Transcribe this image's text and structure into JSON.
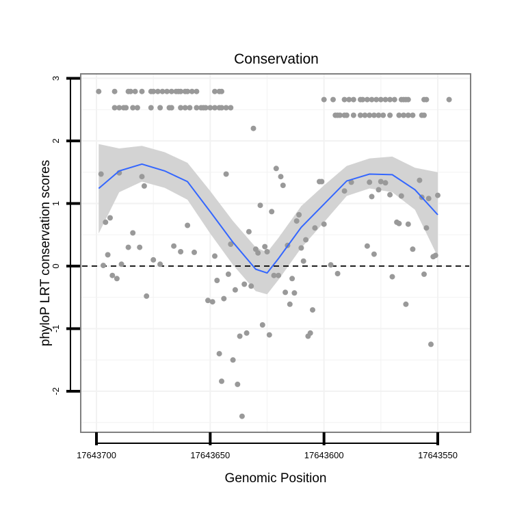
{
  "chart_data": {
    "type": "scatter",
    "title": "Conservation",
    "xlabel": "Genomic Position",
    "ylabel": "phyloP LRT conservation scores",
    "x_reversed": true,
    "xlim": [
      17643700,
      17643545
    ],
    "ylim": [
      -2.6,
      3.0
    ],
    "x_ticks": [
      17643700,
      17643650,
      17643600,
      17643550
    ],
    "x_tick_labels": [
      "17643700",
      "17643650",
      "17643600",
      "17643550"
    ],
    "y_ticks": [
      -2,
      -1,
      0,
      1,
      2,
      3
    ],
    "y_tick_labels": [
      "-2",
      "-1",
      "0",
      "1",
      "2",
      "3"
    ],
    "grid": true,
    "reference_line": {
      "y": 0,
      "style": "dashed",
      "color": "#000000"
    },
    "colors": {
      "points": "#999999",
      "smooth": "#3366ff",
      "ribbon": "#d3d3d3",
      "panel_border": "#7f7f7f",
      "grid": "#f2f2f2"
    },
    "series": [
      {
        "kind": "points",
        "points": [
          [
            17643699,
            2.79
          ],
          [
            17643698,
            1.47
          ],
          [
            17643697,
            0.01
          ],
          [
            17643696,
            0.7
          ],
          [
            17643695,
            0.18
          ],
          [
            17643694,
            0.77
          ],
          [
            17643693,
            -0.15
          ],
          [
            17643691,
            -0.2
          ],
          [
            17643690,
            1.49
          ],
          [
            17643689,
            0.03
          ],
          [
            17643686,
            0.3
          ],
          [
            17643684,
            0.53
          ],
          [
            17643681,
            0.3
          ],
          [
            17643680,
            1.43
          ],
          [
            17643679,
            1.28
          ],
          [
            17643678,
            -0.48
          ],
          [
            17643675,
            0.1
          ],
          [
            17643672,
            0.03
          ],
          [
            17643666,
            0.32
          ],
          [
            17643663,
            0.23
          ],
          [
            17643660,
            0.65
          ],
          [
            17643657,
            0.22
          ],
          [
            17643651,
            -0.55
          ],
          [
            17643649,
            -0.57
          ],
          [
            17643648,
            0.16
          ],
          [
            17643647,
            -0.23
          ],
          [
            17643646,
            -1.4
          ],
          [
            17643645,
            -1.84
          ],
          [
            17643644,
            -0.52
          ],
          [
            17643643,
            1.47
          ],
          [
            17643642,
            -0.13
          ],
          [
            17643641,
            0.35
          ],
          [
            17643640,
            -1.5
          ],
          [
            17643639,
            -0.38
          ],
          [
            17643638,
            -1.89
          ],
          [
            17643637,
            -1.12
          ],
          [
            17643636,
            -2.4
          ],
          [
            17643635,
            -0.29
          ],
          [
            17643634,
            -1.07
          ],
          [
            17643633,
            0.55
          ],
          [
            17643632,
            -0.32
          ],
          [
            17643631,
            2.2
          ],
          [
            17643630,
            0.27
          ],
          [
            17643629,
            0.21
          ],
          [
            17643628,
            0.97
          ],
          [
            17643627,
            -0.94
          ],
          [
            17643626,
            0.31
          ],
          [
            17643625,
            0.23
          ],
          [
            17643624,
            -1.1
          ],
          [
            17643623,
            0.87
          ],
          [
            17643622,
            -0.15
          ],
          [
            17643621,
            1.56
          ],
          [
            17643620,
            -0.15
          ],
          [
            17643619,
            1.43
          ],
          [
            17643618,
            1.29
          ],
          [
            17643617,
            -0.42
          ],
          [
            17643616,
            0.33
          ],
          [
            17643615,
            -0.61
          ],
          [
            17643614,
            -0.2
          ],
          [
            17643613,
            -0.43
          ],
          [
            17643612,
            0.72
          ],
          [
            17643611,
            0.82
          ],
          [
            17643610,
            0.29
          ],
          [
            17643609,
            0.08
          ],
          [
            17643608,
            0.42
          ],
          [
            17643607,
            -1.12
          ],
          [
            17643606,
            -1.07
          ],
          [
            17643605,
            -0.7
          ],
          [
            17643604,
            0.61
          ],
          [
            17643602,
            1.35
          ],
          [
            17643601,
            1.35
          ],
          [
            17643600,
            0.67
          ],
          [
            17643597,
            0.02
          ],
          [
            17643594,
            -0.12
          ],
          [
            17643591,
            1.2
          ],
          [
            17643588,
            1.34
          ],
          [
            17643581,
            0.32
          ],
          [
            17643580,
            1.34
          ],
          [
            17643579,
            1.11
          ],
          [
            17643578,
            0.19
          ],
          [
            17643576,
            1.22
          ],
          [
            17643575,
            1.35
          ],
          [
            17643573,
            1.33
          ],
          [
            17643571,
            1.14
          ],
          [
            17643570,
            -0.17
          ],
          [
            17643568,
            0.7
          ],
          [
            17643567,
            0.68
          ],
          [
            17643566,
            1.12
          ],
          [
            17643564,
            -0.61
          ],
          [
            17643563,
            0.67
          ],
          [
            17643561,
            0.27
          ],
          [
            17643558,
            1.37
          ],
          [
            17643557,
            1.1
          ],
          [
            17643556,
            -0.13
          ],
          [
            17643555,
            0.61
          ],
          [
            17643554,
            1.08
          ],
          [
            17643553,
            -1.25
          ],
          [
            17643552,
            0.15
          ],
          [
            17643551,
            0.17
          ],
          [
            17643550,
            1.13
          ]
        ]
      },
      {
        "kind": "points",
        "points": [
          [
            17643692,
            2.79
          ],
          [
            17643686,
            2.79
          ],
          [
            17643685,
            2.79
          ],
          [
            17643683,
            2.79
          ],
          [
            17643680,
            2.79
          ],
          [
            17643676,
            2.79
          ],
          [
            17643675,
            2.79
          ],
          [
            17643673,
            2.79
          ],
          [
            17643671,
            2.79
          ],
          [
            17643669,
            2.79
          ],
          [
            17643667,
            2.79
          ],
          [
            17643665,
            2.79
          ],
          [
            17643664,
            2.79
          ],
          [
            17643663,
            2.79
          ],
          [
            17643661,
            2.79
          ],
          [
            17643660,
            2.79
          ],
          [
            17643658,
            2.79
          ],
          [
            17643656,
            2.79
          ],
          [
            17643648,
            2.79
          ],
          [
            17643646,
            2.79
          ],
          [
            17643645,
            2.79
          ],
          [
            17643692,
            2.53
          ],
          [
            17643690,
            2.53
          ],
          [
            17643688,
            2.53
          ],
          [
            17643687,
            2.53
          ],
          [
            17643684,
            2.53
          ],
          [
            17643682,
            2.53
          ],
          [
            17643676,
            2.53
          ],
          [
            17643672,
            2.53
          ],
          [
            17643668,
            2.53
          ],
          [
            17643667,
            2.53
          ],
          [
            17643663,
            2.53
          ],
          [
            17643661,
            2.53
          ],
          [
            17643659,
            2.53
          ],
          [
            17643656,
            2.53
          ],
          [
            17643654,
            2.53
          ],
          [
            17643653,
            2.53
          ],
          [
            17643652,
            2.53
          ],
          [
            17643650,
            2.53
          ],
          [
            17643648,
            2.53
          ],
          [
            17643646,
            2.53
          ],
          [
            17643645,
            2.53
          ],
          [
            17643643,
            2.53
          ],
          [
            17643641,
            2.53
          ],
          [
            17643600,
            2.66
          ],
          [
            17643596,
            2.66
          ],
          [
            17643591,
            2.66
          ],
          [
            17643589,
            2.66
          ],
          [
            17643587,
            2.66
          ],
          [
            17643584,
            2.66
          ],
          [
            17643583,
            2.66
          ],
          [
            17643581,
            2.66
          ],
          [
            17643579,
            2.66
          ],
          [
            17643577,
            2.66
          ],
          [
            17643575,
            2.66
          ],
          [
            17643573,
            2.66
          ],
          [
            17643571,
            2.66
          ],
          [
            17643569,
            2.66
          ],
          [
            17643566,
            2.66
          ],
          [
            17643565,
            2.66
          ],
          [
            17643564,
            2.66
          ],
          [
            17643563,
            2.66
          ],
          [
            17643556,
            2.66
          ],
          [
            17643555,
            2.66
          ],
          [
            17643545,
            2.66
          ],
          [
            17643595,
            2.41
          ],
          [
            17643594,
            2.41
          ],
          [
            17643593,
            2.41
          ],
          [
            17643591,
            2.41
          ],
          [
            17643590,
            2.41
          ],
          [
            17643587,
            2.41
          ],
          [
            17643584,
            2.41
          ],
          [
            17643582,
            2.41
          ],
          [
            17643580,
            2.41
          ],
          [
            17643578,
            2.41
          ],
          [
            17643576,
            2.41
          ],
          [
            17643574,
            2.41
          ],
          [
            17643571,
            2.41
          ],
          [
            17643567,
            2.41
          ],
          [
            17643565,
            2.41
          ],
          [
            17643563,
            2.41
          ],
          [
            17643561,
            2.41
          ],
          [
            17643557,
            2.41
          ],
          [
            17643556,
            2.41
          ]
        ]
      },
      {
        "kind": "smooth",
        "x": [
          17643699,
          17643690,
          17643680,
          17643670,
          17643660,
          17643650,
          17643640,
          17643630,
          17643625,
          17643620,
          17643610,
          17643600,
          17643590,
          17643580,
          17643570,
          17643560,
          17643550
        ],
        "y": [
          1.24,
          1.52,
          1.63,
          1.52,
          1.35,
          0.87,
          0.38,
          -0.05,
          -0.11,
          0.12,
          0.62,
          0.99,
          1.36,
          1.47,
          1.46,
          1.22,
          0.82
        ],
        "lower": [
          0.52,
          1.18,
          1.35,
          1.25,
          1.06,
          0.52,
          0.02,
          -0.4,
          -0.45,
          -0.22,
          0.29,
          0.7,
          1.12,
          1.24,
          1.18,
          0.9,
          0.15
        ],
        "upper": [
          1.95,
          1.88,
          1.92,
          1.82,
          1.65,
          1.2,
          0.72,
          0.3,
          0.22,
          0.45,
          0.96,
          1.29,
          1.6,
          1.72,
          1.75,
          1.57,
          1.5
        ]
      }
    ]
  }
}
